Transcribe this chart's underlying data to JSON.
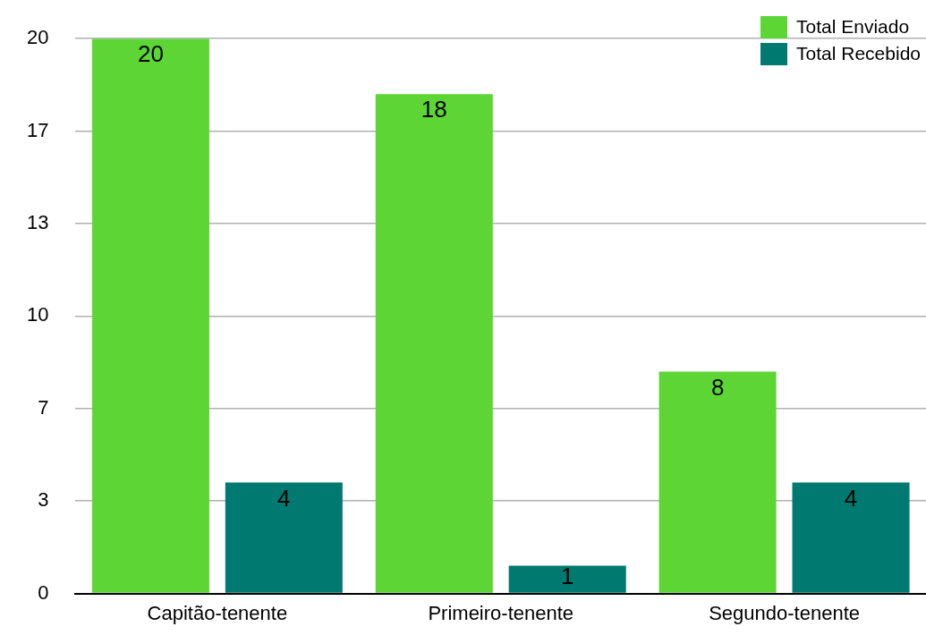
{
  "chart_data": {
    "type": "bar",
    "categories": [
      "Capitão-tenente",
      "Primeiro-tenente",
      "Segundo-tenente"
    ],
    "series": [
      {
        "name": "Total Enviado",
        "color": "#5dd635",
        "values": [
          20,
          18,
          8
        ]
      },
      {
        "name": "Total Recebido",
        "color": "#007a70",
        "values": [
          4,
          1,
          4
        ]
      }
    ],
    "ylim": [
      0,
      20
    ],
    "yticks": [
      0,
      {
        "value": 3.3333,
        "label": "3"
      },
      {
        "value": 6.6667,
        "label": "7"
      },
      10,
      {
        "value": 13.3333,
        "label": "13"
      },
      {
        "value": 16.6667,
        "label": "17"
      },
      20
    ],
    "grid": "y",
    "legend": "top right",
    "data_labels": true
  }
}
